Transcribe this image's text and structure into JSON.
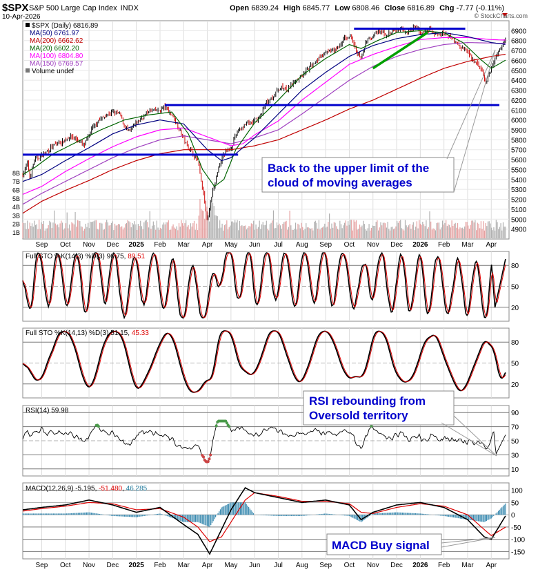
{
  "header": {
    "symbol": "$SPX",
    "name": "S&P 500 Large Cap Index",
    "exchange": "INDX",
    "date": "10-Apr-2026",
    "open_label": "Open",
    "open": "6839.24",
    "high_label": "High",
    "high": "6845.77",
    "low_label": "Low",
    "low": "6808.46",
    "close_label": "Close",
    "close": "6816.89",
    "chg_label": "Chg",
    "chg": "-7.77 (-0.11%)",
    "watermark": "© StockCharts.com"
  },
  "colors": {
    "price_up": "#000000",
    "price_down": "#cc0000",
    "ma50": "#000080",
    "ma200": "#c00000",
    "ma20": "#006400",
    "ma100": "#ff00ff",
    "ma150": "#a040c0",
    "annotation": "#0000cc",
    "trendline": "#0000cc",
    "green_trend": "#00a000",
    "signal_line": "#dd0000"
  },
  "chart_data": [
    {
      "type": "line",
      "title": "$SPX (Daily) 6816.89",
      "legend": [
        {
          "label": "$SPX (Daily) 6816.89",
          "color": "#000000"
        },
        {
          "label": "MA(50) 6761.97",
          "color": "#000080"
        },
        {
          "label": "MA(200) 6662.62",
          "color": "#c00000"
        },
        {
          "label": "MA(20) 6602.20",
          "color": "#006400"
        },
        {
          "label": "MA(100) 6804.80",
          "color": "#ff00ff"
        },
        {
          "label": "MA(150) 6769.57",
          "color": "#a040c0"
        },
        {
          "label": "Volume undef",
          "color": "#777777"
        }
      ],
      "x_ticks": [
        "Sep",
        "Oct",
        "Nov",
        "Dec",
        "2025",
        "Feb",
        "Mar",
        "Apr",
        "May",
        "Jun",
        "Jul",
        "Aug",
        "Sep",
        "Oct",
        "Nov",
        "Dec",
        "2026",
        "Feb",
        "Mar",
        "Apr"
      ],
      "x_tick_months": [
        0,
        1,
        2,
        3,
        4,
        5,
        6,
        7,
        8,
        9,
        10,
        11,
        12,
        13,
        14,
        15,
        16,
        17,
        18,
        19
      ],
      "x_range_months": [
        -0.8,
        19.75
      ],
      "ylim": [
        4800,
        7000
      ],
      "y_ticks": [
        4900,
        5000,
        5100,
        5200,
        5300,
        5400,
        5500,
        5600,
        5700,
        5800,
        5900,
        6000,
        6100,
        6200,
        6300,
        6400,
        6500,
        6600,
        6700,
        6800,
        6900
      ],
      "volume_ticks": [
        "1B",
        "2B",
        "3B",
        "4B",
        "5B",
        "6B",
        "7B",
        "8B"
      ],
      "price_path": [
        [
          -0.8,
          5450
        ],
        [
          -0.6,
          5560
        ],
        [
          -0.5,
          5420
        ],
        [
          -0.3,
          5600
        ],
        [
          0,
          5640
        ],
        [
          0.3,
          5700
        ],
        [
          0.6,
          5760
        ],
        [
          0.9,
          5780
        ],
        [
          1.2,
          5840
        ],
        [
          1.5,
          5800
        ],
        [
          1.8,
          5740
        ],
        [
          2.1,
          5900
        ],
        [
          2.4,
          6000
        ],
        [
          2.7,
          6040
        ],
        [
          3.0,
          6080
        ],
        [
          3.3,
          6060
        ],
        [
          3.5,
          5940
        ],
        [
          3.7,
          5880
        ],
        [
          4.0,
          5970
        ],
        [
          4.3,
          6040
        ],
        [
          4.6,
          6100
        ],
        [
          4.9,
          6090
        ],
        [
          5.2,
          6130
        ],
        [
          5.5,
          6050
        ],
        [
          5.8,
          5920
        ],
        [
          6.1,
          5760
        ],
        [
          6.4,
          5660
        ],
        [
          6.6,
          5580
        ],
        [
          6.8,
          5300
        ],
        [
          7.0,
          4980
        ],
        [
          7.15,
          5200
        ],
        [
          7.3,
          5350
        ],
        [
          7.5,
          5550
        ],
        [
          7.7,
          5660
        ],
        [
          8.0,
          5720
        ],
        [
          8.3,
          5900
        ],
        [
          8.6,
          5950
        ],
        [
          8.9,
          5980
        ],
        [
          9.2,
          6020
        ],
        [
          9.5,
          6180
        ],
        [
          9.8,
          6250
        ],
        [
          10.1,
          6330
        ],
        [
          10.4,
          6300
        ],
        [
          10.7,
          6400
        ],
        [
          11.0,
          6450
        ],
        [
          11.3,
          6520
        ],
        [
          11.6,
          6600
        ],
        [
          11.9,
          6660
        ],
        [
          12.2,
          6700
        ],
        [
          12.5,
          6720
        ],
        [
          12.8,
          6820
        ],
        [
          13.1,
          6840
        ],
        [
          13.3,
          6700
        ],
        [
          13.5,
          6620
        ],
        [
          13.7,
          6780
        ],
        [
          14.0,
          6850
        ],
        [
          14.3,
          6890
        ],
        [
          14.6,
          6860
        ],
        [
          14.9,
          6900
        ],
        [
          15.2,
          6920
        ],
        [
          15.5,
          6880
        ],
        [
          15.8,
          6940
        ],
        [
          16.1,
          6860
        ],
        [
          16.4,
          6920
        ],
        [
          16.7,
          6850
        ],
        [
          17.0,
          6880
        ],
        [
          17.3,
          6830
        ],
        [
          17.6,
          6760
        ],
        [
          17.9,
          6700
        ],
        [
          18.2,
          6610
        ],
        [
          18.5,
          6540
        ],
        [
          18.8,
          6370
        ],
        [
          19.0,
          6520
        ],
        [
          19.2,
          6650
        ],
        [
          19.4,
          6720
        ],
        [
          19.6,
          6816
        ]
      ],
      "ma50_path": [
        [
          -0.8,
          5380
        ],
        [
          0,
          5450
        ],
        [
          1,
          5590
        ],
        [
          2,
          5720
        ],
        [
          3,
          5860
        ],
        [
          4,
          5950
        ],
        [
          5,
          6000
        ],
        [
          6,
          5960
        ],
        [
          7,
          5700
        ],
        [
          7.6,
          5590
        ],
        [
          8,
          5620
        ],
        [
          9,
          5820
        ],
        [
          10,
          6060
        ],
        [
          11,
          6300
        ],
        [
          12,
          6480
        ],
        [
          13,
          6640
        ],
        [
          14,
          6750
        ],
        [
          15,
          6820
        ],
        [
          16,
          6860
        ],
        [
          17,
          6880
        ],
        [
          18,
          6840
        ],
        [
          19,
          6780
        ],
        [
          19.6,
          6762
        ]
      ],
      "ma200_path": [
        [
          -0.8,
          5060
        ],
        [
          0,
          5180
        ],
        [
          1,
          5290
        ],
        [
          2,
          5390
        ],
        [
          3,
          5500
        ],
        [
          4,
          5590
        ],
        [
          5,
          5660
        ],
        [
          6,
          5700
        ],
        [
          7,
          5700
        ],
        [
          8,
          5700
        ],
        [
          9,
          5740
        ],
        [
          10,
          5800
        ],
        [
          11,
          5900
        ],
        [
          12,
          6000
        ],
        [
          13,
          6110
        ],
        [
          14,
          6200
        ],
        [
          15,
          6310
        ],
        [
          16,
          6420
        ],
        [
          17,
          6520
        ],
        [
          18,
          6590
        ],
        [
          19,
          6640
        ],
        [
          19.6,
          6662
        ]
      ],
      "ma20_path": [
        [
          -0.8,
          5450
        ],
        [
          -0.3,
          5520
        ],
        [
          0.5,
          5660
        ],
        [
          1.5,
          5780
        ],
        [
          2.5,
          5900
        ],
        [
          3.5,
          6000
        ],
        [
          4.5,
          6050
        ],
        [
          5.5,
          6080
        ],
        [
          6.2,
          5860
        ],
        [
          6.8,
          5500
        ],
        [
          7.3,
          5330
        ],
        [
          7.7,
          5400
        ],
        [
          8.2,
          5700
        ],
        [
          9,
          5970
        ],
        [
          10,
          6200
        ],
        [
          11,
          6450
        ],
        [
          12,
          6620
        ],
        [
          13,
          6760
        ],
        [
          13.5,
          6720
        ],
        [
          14.2,
          6800
        ],
        [
          15,
          6880
        ],
        [
          16,
          6900
        ],
        [
          17,
          6880
        ],
        [
          17.8,
          6780
        ],
        [
          18.5,
          6620
        ],
        [
          19,
          6520
        ],
        [
          19.6,
          6602
        ]
      ],
      "ma100_path": [
        [
          -0.8,
          5250
        ],
        [
          0,
          5330
        ],
        [
          1,
          5480
        ],
        [
          2,
          5610
        ],
        [
          3,
          5730
        ],
        [
          4,
          5830
        ],
        [
          5,
          5900
        ],
        [
          6,
          5920
        ],
        [
          7,
          5830
        ],
        [
          8,
          5740
        ],
        [
          8.5,
          5760
        ],
        [
          9,
          5850
        ],
        [
          10,
          5990
        ],
        [
          11,
          6200
        ],
        [
          12,
          6380
        ],
        [
          13,
          6560
        ],
        [
          14,
          6660
        ],
        [
          15,
          6740
        ],
        [
          16,
          6810
        ],
        [
          17,
          6830
        ],
        [
          18,
          6830
        ],
        [
          19,
          6810
        ],
        [
          19.6,
          6805
        ]
      ],
      "ma150_path": [
        [
          -0.8,
          5150
        ],
        [
          0,
          5260
        ],
        [
          1,
          5380
        ],
        [
          2,
          5500
        ],
        [
          3,
          5620
        ],
        [
          4,
          5720
        ],
        [
          5,
          5800
        ],
        [
          6,
          5840
        ],
        [
          7,
          5800
        ],
        [
          8,
          5760
        ],
        [
          9,
          5820
        ],
        [
          10,
          5900
        ],
        [
          11,
          6060
        ],
        [
          12,
          6230
        ],
        [
          13,
          6400
        ],
        [
          14,
          6540
        ],
        [
          15,
          6640
        ],
        [
          16,
          6710
        ],
        [
          17,
          6760
        ],
        [
          18,
          6780
        ],
        [
          19,
          6775
        ],
        [
          19.6,
          6770
        ]
      ],
      "hlines": [
        {
          "y": 5650,
          "x_from": -0.8,
          "x_to": 8.3
        },
        {
          "y": 6150,
          "x_from": 5.2,
          "x_to": 19.9
        },
        {
          "y": 6920,
          "x_from": 13.2,
          "x_to": 17.9
        }
      ],
      "green_trend": [
        [
          14.0,
          6520
        ],
        [
          16.3,
          6880
        ]
      ],
      "annotations": [
        {
          "line1": "Back to the upper limit of the",
          "line2": "cloud of moving averages"
        }
      ]
    },
    {
      "type": "line",
      "title": "Full STO %K(14,3) %D(3) 96.75, 89.51",
      "label": "Full STO %K(14,3) %D(3)",
      "k_value": "96.75",
      "d_value": "89.51",
      "ylim": [
        0,
        100
      ],
      "y_ticks": [
        20,
        50,
        80
      ]
    },
    {
      "type": "line",
      "title": "Full STO %K(14,13) %D(3) 51.15, 45.33",
      "label": "Full STO %K(14,13) %D(3)",
      "k_value": "51.15",
      "d_value": "45.33",
      "ylim": [
        0,
        100
      ],
      "y_ticks": [
        20,
        50,
        80
      ],
      "annotations": [
        {
          "line1": "RSI rebounding from",
          "line2": "Oversold territory"
        }
      ]
    },
    {
      "type": "line",
      "title": "RSI(14) 59.98",
      "label": "RSI(14)",
      "value": "59.98",
      "ylim": [
        0,
        100
      ],
      "y_ticks": [
        10,
        30,
        50,
        70,
        90
      ]
    },
    {
      "type": "line",
      "title": "MACD(12,26,9) -5.195, -51.480, 46.285",
      "label": "MACD(12,26,9)",
      "macd": "-5.195",
      "signal": "-51.480",
      "hist": "46.285",
      "ylim": [
        -180,
        130
      ],
      "y_ticks": [
        -150,
        -100,
        -50,
        0,
        50,
        100
      ],
      "macd_path": [
        [
          -0.8,
          20
        ],
        [
          0,
          30
        ],
        [
          1,
          40
        ],
        [
          2,
          60
        ],
        [
          3,
          40
        ],
        [
          4,
          10
        ],
        [
          5,
          30
        ],
        [
          6,
          -40
        ],
        [
          6.6,
          -80
        ],
        [
          7.1,
          -160
        ],
        [
          7.6,
          -60
        ],
        [
          8,
          20
        ],
        [
          8.6,
          110
        ],
        [
          9,
          90
        ],
        [
          10,
          70
        ],
        [
          11,
          50
        ],
        [
          12,
          60
        ],
        [
          13,
          40
        ],
        [
          13.5,
          -20
        ],
        [
          14,
          10
        ],
        [
          15,
          40
        ],
        [
          16,
          50
        ],
        [
          17,
          30
        ],
        [
          18,
          -20
        ],
        [
          18.7,
          -90
        ],
        [
          19,
          -100
        ],
        [
          19.6,
          -5
        ]
      ],
      "signal_path": [
        [
          -0.8,
          15
        ],
        [
          0,
          25
        ],
        [
          1,
          35
        ],
        [
          2,
          50
        ],
        [
          3,
          45
        ],
        [
          4,
          20
        ],
        [
          5,
          25
        ],
        [
          6,
          -10
        ],
        [
          6.6,
          -50
        ],
        [
          7.1,
          -110
        ],
        [
          7.6,
          -90
        ],
        [
          8,
          -30
        ],
        [
          8.6,
          60
        ],
        [
          9,
          90
        ],
        [
          10,
          75
        ],
        [
          11,
          55
        ],
        [
          12,
          55
        ],
        [
          13,
          45
        ],
        [
          13.5,
          10
        ],
        [
          14,
          5
        ],
        [
          15,
          30
        ],
        [
          16,
          45
        ],
        [
          17,
          35
        ],
        [
          18,
          0
        ],
        [
          18.7,
          -60
        ],
        [
          19,
          -85
        ],
        [
          19.6,
          -51
        ]
      ],
      "annotations": [
        {
          "line1": "MACD Buy signal",
          "line2": ""
        }
      ]
    }
  ]
}
